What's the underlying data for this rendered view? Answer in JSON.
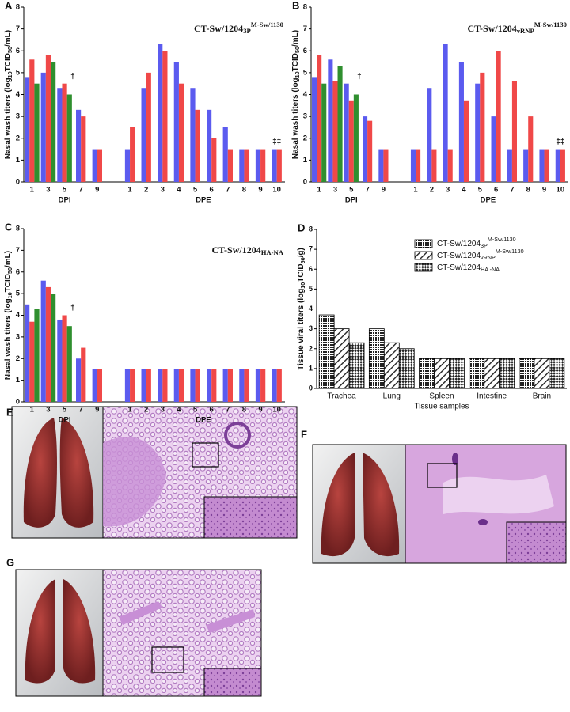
{
  "chart_data": [
    {
      "type": "grouped-bar",
      "panel": "A",
      "title": {
        "text": "CT-Sw/1204",
        "sub": "3P",
        "sup": "M-Sw/1130"
      },
      "ylabel": [
        {
          "text": "Nasal wash titers (log"
        },
        {
          "sub": "10"
        },
        {
          "text": "TCID"
        },
        {
          "sub": "50"
        },
        {
          "text": "/mL)"
        }
      ],
      "ylim": [
        0,
        8
      ],
      "yticks": [
        0,
        1,
        2,
        3,
        4,
        5,
        6,
        7,
        8
      ],
      "colors": [
        "#5b5bef",
        "#f04848",
        "#2f8f2f"
      ],
      "groups": [
        {
          "name": "DPI",
          "categories": [
            "1",
            "3",
            "5",
            "7",
            "9"
          ],
          "series": [
            [
              4.8,
              5.0,
              4.3,
              3.3,
              1.5
            ],
            [
              5.6,
              5.8,
              4.5,
              3.0,
              1.5
            ],
            [
              4.5,
              5.5,
              4.0,
              null,
              null
            ]
          ]
        },
        {
          "name": "DPE",
          "categories": [
            "1",
            "2",
            "3",
            "4",
            "5",
            "6",
            "7",
            "8",
            "9",
            "10"
          ],
          "series": [
            [
              1.5,
              4.3,
              6.3,
              5.5,
              4.3,
              3.3,
              2.5,
              1.5,
              1.5,
              1.5
            ],
            [
              2.5,
              5.0,
              6.0,
              4.5,
              3.3,
              2.0,
              1.5,
              1.5,
              1.5,
              1.5
            ]
          ]
        }
      ],
      "annotations": [
        {
          "text": "†",
          "group": "DPI",
          "category": "5"
        },
        {
          "text": "‡‡",
          "group": "DPE",
          "category": "10"
        }
      ]
    },
    {
      "type": "grouped-bar",
      "panel": "B",
      "title": {
        "text": "CT-Sw/1204",
        "sub": "vRNP",
        "sup": "M-Sw/1130"
      },
      "ylabel": [
        {
          "text": "Nasal wash titers (log"
        },
        {
          "sub": "10"
        },
        {
          "text": "TCID"
        },
        {
          "sub": "50"
        },
        {
          "text": "/mL)"
        }
      ],
      "ylim": [
        0,
        8
      ],
      "yticks": [
        0,
        1,
        2,
        3,
        4,
        5,
        6,
        7,
        8
      ],
      "colors": [
        "#5b5bef",
        "#f04848",
        "#2f8f2f"
      ],
      "groups": [
        {
          "name": "DPI",
          "categories": [
            "1",
            "3",
            "5",
            "7",
            "9"
          ],
          "series": [
            [
              4.8,
              5.6,
              4.5,
              3.0,
              1.5
            ],
            [
              5.8,
              4.6,
              3.7,
              2.8,
              1.5
            ],
            [
              4.5,
              5.3,
              4.0,
              null,
              null
            ]
          ]
        },
        {
          "name": "DPE",
          "categories": [
            "1",
            "2",
            "3",
            "4",
            "5",
            "6",
            "7",
            "8",
            "9",
            "10"
          ],
          "series": [
            [
              1.5,
              4.3,
              6.3,
              5.5,
              4.5,
              3.0,
              1.5,
              1.5,
              1.5,
              1.5
            ],
            [
              1.5,
              1.5,
              1.5,
              3.7,
              5.0,
              6.0,
              4.6,
              3.0,
              1.5,
              1.5
            ]
          ]
        }
      ],
      "annotations": [
        {
          "text": "†",
          "group": "DPI",
          "category": "5"
        },
        {
          "text": "‡‡",
          "group": "DPE",
          "category": "10"
        }
      ]
    },
    {
      "type": "grouped-bar",
      "panel": "C",
      "title": {
        "text": "CT-Sw/1204",
        "sub": "HA-NA"
      },
      "ylabel": [
        {
          "text": "Nasal wash titers (log"
        },
        {
          "sub": "10"
        },
        {
          "text": "TCID"
        },
        {
          "sub": "50"
        },
        {
          "text": "/mL)"
        }
      ],
      "ylim": [
        0,
        8
      ],
      "yticks": [
        0,
        1,
        2,
        3,
        4,
        5,
        6,
        7,
        8
      ],
      "colors": [
        "#5b5bef",
        "#f04848",
        "#2f8f2f"
      ],
      "groups": [
        {
          "name": "DPI",
          "categories": [
            "1",
            "3",
            "5",
            "7",
            "9"
          ],
          "series": [
            [
              4.5,
              5.6,
              3.8,
              2.0,
              1.5
            ],
            [
              3.7,
              5.3,
              4.0,
              2.5,
              1.5
            ],
            [
              4.3,
              5.0,
              3.5,
              null,
              null
            ]
          ]
        },
        {
          "name": "DPE",
          "categories": [
            "1",
            "2",
            "3",
            "4",
            "5",
            "6",
            "7",
            "8",
            "9",
            "10"
          ],
          "series": [
            [
              1.5,
              1.5,
              1.5,
              1.5,
              1.5,
              1.5,
              1.5,
              1.5,
              1.5,
              1.5
            ],
            [
              1.5,
              1.5,
              1.5,
              1.5,
              1.5,
              1.5,
              1.5,
              1.5,
              1.5,
              1.5
            ]
          ]
        }
      ],
      "annotations": [
        {
          "text": "†",
          "group": "DPI",
          "category": "5"
        }
      ]
    },
    {
      "type": "pattern-bar",
      "panel": "D",
      "xlabel": "Tissue samples",
      "ylabel": [
        {
          "text": "Tissue viral titers (log"
        },
        {
          "sub": "10"
        },
        {
          "text": "TCID"
        },
        {
          "sub": "50"
        },
        {
          "text": "/g)"
        }
      ],
      "ylim": [
        0,
        8
      ],
      "yticks": [
        0,
        1,
        2,
        3,
        4,
        5,
        6,
        7,
        8
      ],
      "categories": [
        "Trachea",
        "Lung",
        "Spleen",
        "Intestine",
        "Brain"
      ],
      "legend": "top-right",
      "series": [
        {
          "name": {
            "text": "CT-Sw/1204",
            "sub": "3P",
            "sup": "M-Sw/1130"
          },
          "pattern": "dots",
          "values": [
            3.7,
            3.0,
            1.5,
            1.5,
            1.5
          ]
        },
        {
          "name": {
            "text": "CT-Sw/1204",
            "sub": "vRNP",
            "sup": "M-Sw/1130"
          },
          "pattern": "hatch",
          "values": [
            3.0,
            2.3,
            1.5,
            1.5,
            1.5
          ]
        },
        {
          "name": {
            "text": "CT-Sw/1204",
            "sub": "HA -NA"
          },
          "pattern": "cross",
          "values": [
            2.3,
            2.0,
            1.5,
            1.5,
            1.5
          ]
        }
      ]
    }
  ],
  "images": [
    {
      "panel": "E"
    },
    {
      "panel": "F"
    },
    {
      "panel": "G"
    }
  ]
}
